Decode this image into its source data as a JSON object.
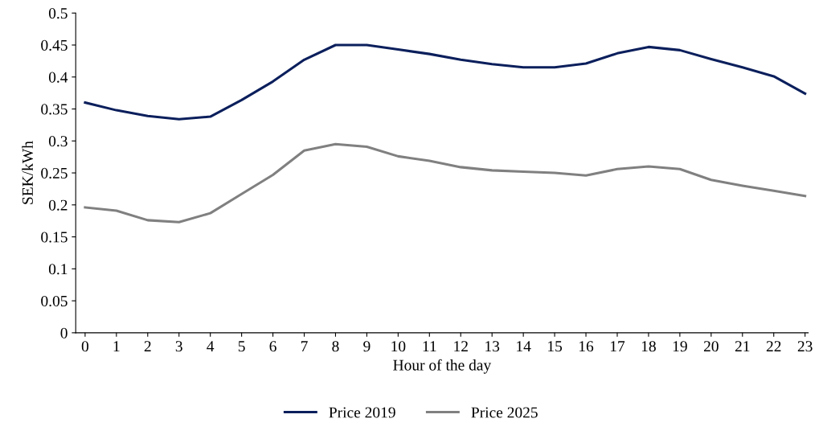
{
  "chart_data": {
    "type": "line",
    "xlabel": "Hour of the day",
    "ylabel": "SEK/kWh",
    "categories": [
      "0",
      "1",
      "2",
      "3",
      "4",
      "5",
      "6",
      "7",
      "8",
      "9",
      "10",
      "11",
      "12",
      "13",
      "14",
      "15",
      "16",
      "17",
      "18",
      "19",
      "20",
      "21",
      "22",
      "23"
    ],
    "series": [
      {
        "name": "Price 2019",
        "color": "#0b1f5c",
        "values": [
          0.36,
          0.348,
          0.339,
          0.334,
          0.338,
          0.364,
          0.393,
          0.427,
          0.45,
          0.45,
          0.443,
          0.436,
          0.427,
          0.42,
          0.415,
          0.415,
          0.421,
          0.437,
          0.447,
          0.442,
          0.428,
          0.415,
          0.401,
          0.374
        ]
      },
      {
        "name": "Price 2025",
        "color": "#808080",
        "values": [
          0.196,
          0.191,
          0.176,
          0.173,
          0.187,
          0.217,
          0.247,
          0.285,
          0.295,
          0.291,
          0.276,
          0.269,
          0.259,
          0.254,
          0.252,
          0.25,
          0.246,
          0.256,
          0.26,
          0.256,
          0.239,
          0.23,
          0.222,
          0.214
        ]
      }
    ],
    "ylim": [
      0,
      0.5
    ],
    "yticks": [
      0,
      0.05,
      0.1,
      0.15,
      0.2,
      0.25,
      0.3,
      0.35,
      0.4,
      0.45,
      0.5
    ],
    "grid": false,
    "legend": "bottom",
    "marker": "none",
    "line_style": "solid"
  }
}
